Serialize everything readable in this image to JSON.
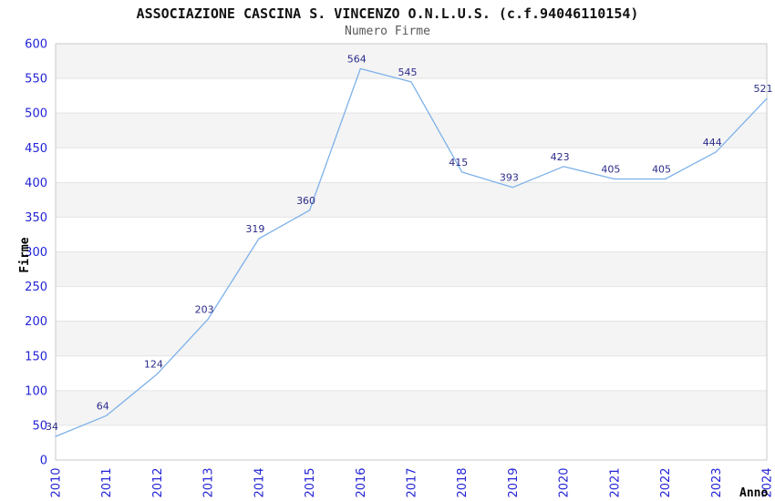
{
  "chart_data": {
    "type": "line",
    "title": "ASSOCIAZIONE CASCINA S. VINCENZO O.N.L.U.S. (c.f.94046110154)",
    "subtitle": "Numero Firme",
    "xlabel": "Anno",
    "ylabel": "Firme",
    "categories": [
      "2010",
      "2011",
      "2012",
      "2013",
      "2014",
      "2015",
      "2016",
      "2017",
      "2018",
      "2019",
      "2020",
      "2021",
      "2022",
      "2023",
      "2024"
    ],
    "series": [
      {
        "name": "Numero Firme",
        "values": [
          34,
          64,
          124,
          203,
          319,
          360,
          564,
          545,
          415,
          393,
          423,
          405,
          405,
          444,
          521
        ]
      }
    ],
    "ylim": [
      0,
      600
    ],
    "ytick_step": 50,
    "grid": "horizontal gridlines with alternating shaded bands",
    "legend": "none",
    "data_labels_visible": true,
    "colors": {
      "line": "#7db1e9",
      "data_label": "#2b2b8a",
      "tick_label": "#2323d7",
      "band_fill": "#f4f4f4",
      "gridline": "#e3e3e3",
      "plot_border": "#c9c9c9",
      "title": "#111111",
      "subtitle": "#595959",
      "axis_label": "#333333",
      "background": "#ffffff"
    }
  }
}
